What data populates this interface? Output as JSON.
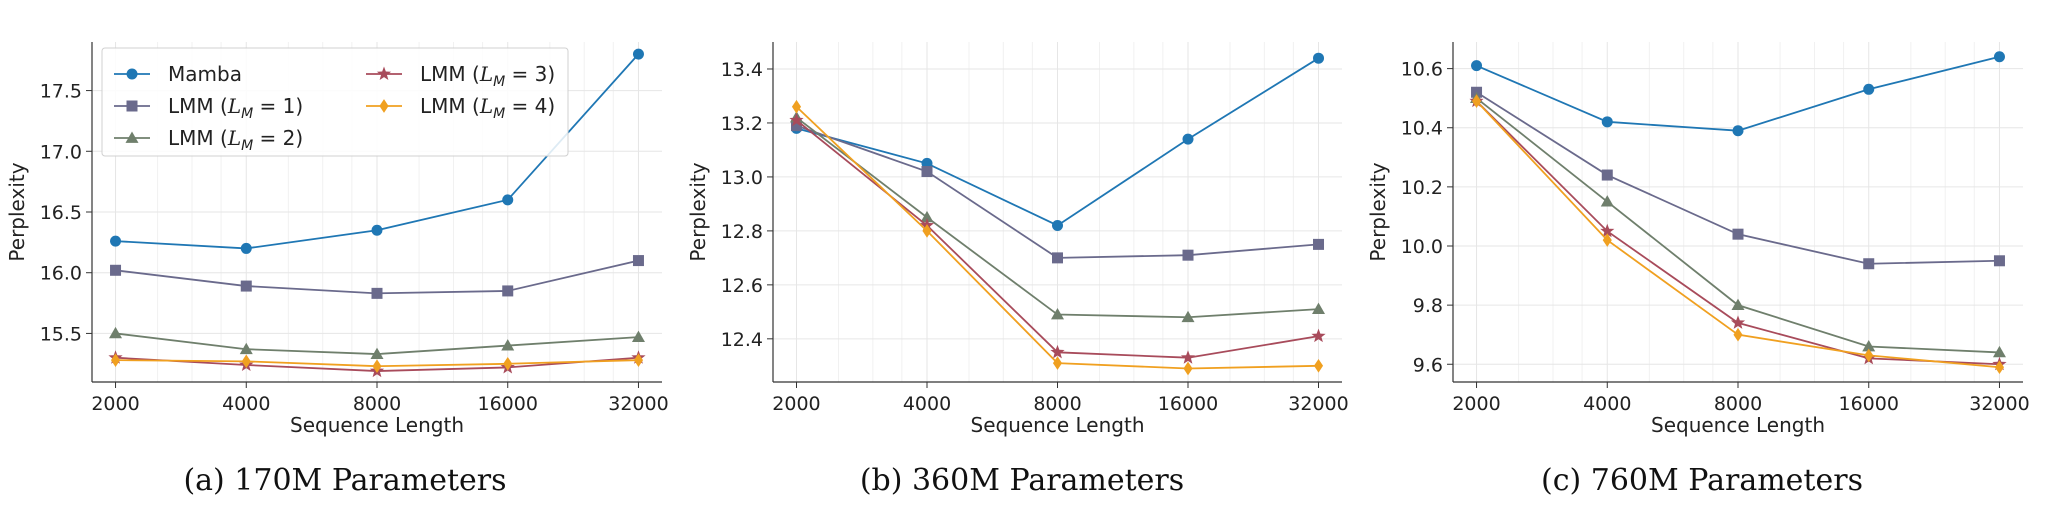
{
  "chart_data": [
    {
      "type": "line",
      "caption": "(a) 170M Parameters",
      "xlabel": "Sequence Length",
      "ylabel": "Perplexity",
      "x": [
        2000,
        4000,
        8000,
        16000,
        32000
      ],
      "x_scale": "log",
      "x_ticks": [
        "2000",
        "4000",
        "8000",
        "16000",
        "32000"
      ],
      "ylim": [
        15.1,
        17.9
      ],
      "y_ticks": [
        "15.5",
        "16.0",
        "16.5",
        "17.0",
        "17.5"
      ],
      "grid": true,
      "legend": "top-left",
      "series": [
        {
          "name": "Mamba",
          "color": "#1f77b4",
          "marker": "circle",
          "values": [
            16.26,
            16.2,
            16.35,
            16.6,
            17.8
          ]
        },
        {
          "name": "LMM (L_M = 1)",
          "color": "#6a6a8c",
          "marker": "square",
          "values": [
            16.02,
            15.89,
            15.83,
            15.85,
            16.1
          ]
        },
        {
          "name": "LMM (L_M = 2)",
          "color": "#6f7f6c",
          "marker": "triangle",
          "values": [
            15.5,
            15.37,
            15.33,
            15.4,
            15.47
          ]
        },
        {
          "name": "LMM (L_M = 3)",
          "color": "#a84b5b",
          "marker": "star",
          "values": [
            15.3,
            15.24,
            15.19,
            15.22,
            15.3
          ]
        },
        {
          "name": "LMM (L_M = 4)",
          "color": "#f0a020",
          "marker": "diamond",
          "values": [
            15.28,
            15.27,
            15.23,
            15.25,
            15.28
          ]
        }
      ]
    },
    {
      "type": "line",
      "caption": "(b) 360M Parameters",
      "xlabel": "Sequence Length",
      "ylabel": "Perplexity",
      "x": [
        2000,
        4000,
        8000,
        16000,
        32000
      ],
      "x_scale": "log",
      "x_ticks": [
        "2000",
        "4000",
        "8000",
        "16000",
        "32000"
      ],
      "ylim": [
        12.24,
        13.5
      ],
      "y_ticks": [
        "12.4",
        "12.6",
        "12.8",
        "13.0",
        "13.2",
        "13.4"
      ],
      "grid": true,
      "series": [
        {
          "name": "Mamba",
          "color": "#1f77b4",
          "marker": "circle",
          "values": [
            13.18,
            13.05,
            12.82,
            13.14,
            13.44
          ]
        },
        {
          "name": "LMM (L_M = 1)",
          "color": "#6a6a8c",
          "marker": "square",
          "values": [
            13.19,
            13.02,
            12.7,
            12.71,
            12.75
          ]
        },
        {
          "name": "LMM (L_M = 2)",
          "color": "#6f7f6c",
          "marker": "triangle",
          "values": [
            13.22,
            12.85,
            12.49,
            12.48,
            12.51
          ]
        },
        {
          "name": "LMM (L_M = 3)",
          "color": "#a84b5b",
          "marker": "star",
          "values": [
            13.21,
            12.82,
            12.35,
            12.33,
            12.41
          ]
        },
        {
          "name": "LMM (L_M = 4)",
          "color": "#f0a020",
          "marker": "diamond",
          "values": [
            13.26,
            12.8,
            12.31,
            12.29,
            12.3
          ]
        }
      ]
    },
    {
      "type": "line",
      "caption": "(c) 760M Parameters",
      "xlabel": "Sequence Length",
      "ylabel": "Perplexity",
      "x": [
        2000,
        4000,
        8000,
        16000,
        32000
      ],
      "x_scale": "log",
      "x_ticks": [
        "2000",
        "4000",
        "8000",
        "16000",
        "32000"
      ],
      "ylim": [
        9.54,
        10.69
      ],
      "y_ticks": [
        "9.6",
        "9.8",
        "10.0",
        "10.2",
        "10.4",
        "10.6"
      ],
      "grid": true,
      "series": [
        {
          "name": "Mamba",
          "color": "#1f77b4",
          "marker": "circle",
          "values": [
            10.61,
            10.42,
            10.39,
            10.53,
            10.64
          ]
        },
        {
          "name": "LMM (L_M = 1)",
          "color": "#6a6a8c",
          "marker": "square",
          "values": [
            10.52,
            10.24,
            10.04,
            9.94,
            9.95
          ]
        },
        {
          "name": "LMM (L_M = 2)",
          "color": "#6f7f6c",
          "marker": "triangle",
          "values": [
            10.5,
            10.15,
            9.8,
            9.66,
            9.64
          ]
        },
        {
          "name": "LMM (L_M = 3)",
          "color": "#a84b5b",
          "marker": "star",
          "values": [
            10.49,
            10.05,
            9.74,
            9.62,
            9.6
          ]
        },
        {
          "name": "LMM (L_M = 4)",
          "color": "#f0a020",
          "marker": "diamond",
          "values": [
            10.49,
            10.02,
            9.7,
            9.63,
            9.59
          ]
        }
      ]
    }
  ]
}
